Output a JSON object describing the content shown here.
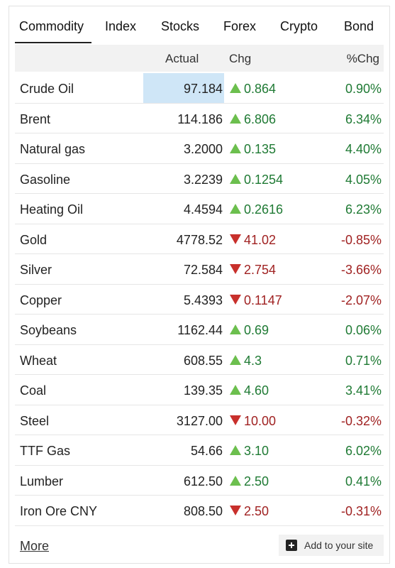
{
  "tabs": [
    "Commodity",
    "Index",
    "Stocks",
    "Forex",
    "Crypto",
    "Bond"
  ],
  "header": {
    "actual": "Actual",
    "chg": "Chg",
    "pct": "%Chg"
  },
  "rows": [
    {
      "name": "Crude Oil",
      "actual": "97.184",
      "chg": "0.864",
      "pct": "0.90%",
      "dir": "up"
    },
    {
      "name": "Brent",
      "actual": "114.186",
      "chg": "6.806",
      "pct": "6.34%",
      "dir": "up"
    },
    {
      "name": "Natural gas",
      "actual": "3.2000",
      "chg": "0.135",
      "pct": "4.40%",
      "dir": "up"
    },
    {
      "name": "Gasoline",
      "actual": "3.2239",
      "chg": "0.1254",
      "pct": "4.05%",
      "dir": "up"
    },
    {
      "name": "Heating Oil",
      "actual": "4.4594",
      "chg": "0.2616",
      "pct": "6.23%",
      "dir": "up"
    },
    {
      "name": "Gold",
      "actual": "4778.52",
      "chg": "41.02",
      "pct": "-0.85%",
      "dir": "down"
    },
    {
      "name": "Silver",
      "actual": "72.584",
      "chg": "2.754",
      "pct": "-3.66%",
      "dir": "down"
    },
    {
      "name": "Copper",
      "actual": "5.4393",
      "chg": "0.1147",
      "pct": "-2.07%",
      "dir": "down"
    },
    {
      "name": "Soybeans",
      "actual": "1162.44",
      "chg": "0.69",
      "pct": "0.06%",
      "dir": "up"
    },
    {
      "name": "Wheat",
      "actual": "608.55",
      "chg": "4.3",
      "pct": "0.71%",
      "dir": "up"
    },
    {
      "name": "Coal",
      "actual": "139.35",
      "chg": "4.60",
      "pct": "3.41%",
      "dir": "up"
    },
    {
      "name": "Steel",
      "actual": "3127.00",
      "chg": "10.00",
      "pct": "-0.32%",
      "dir": "down"
    },
    {
      "name": "TTF Gas",
      "actual": "54.66",
      "chg": "3.10",
      "pct": "6.02%",
      "dir": "up"
    },
    {
      "name": "Lumber",
      "actual": "612.50",
      "chg": "2.50",
      "pct": "0.41%",
      "dir": "up"
    },
    {
      "name": "Iron Ore CNY",
      "actual": "808.50",
      "chg": "2.50",
      "pct": "-0.31%",
      "dir": "down"
    }
  ],
  "footer": {
    "more": "More",
    "add": "Add to your site"
  }
}
